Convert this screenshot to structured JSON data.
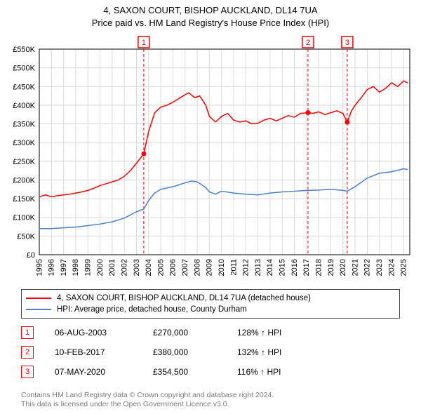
{
  "title_line1": "4, SAXON COURT, BISHOP AUCKLAND, DL14 7UA",
  "title_line2": "Price paid vs. HM Land Registry's House Price Index (HPI)",
  "chart": {
    "type": "line",
    "background_color": "#ffffff",
    "grid_color": "#d9d9d9",
    "axis_color": "#000000",
    "tick_font_size": 11,
    "x": {
      "min": 1995,
      "max": 2025.5,
      "ticks": [
        1995,
        1996,
        1997,
        1998,
        1999,
        2000,
        2001,
        2002,
        2003,
        2004,
        2005,
        2006,
        2007,
        2008,
        2009,
        2010,
        2011,
        2012,
        2013,
        2014,
        2015,
        2016,
        2017,
        2018,
        2019,
        2020,
        2021,
        2022,
        2023,
        2024,
        2025
      ],
      "tick_labels": [
        "1995",
        "1996",
        "1997",
        "1998",
        "1999",
        "2000",
        "2001",
        "2002",
        "2003",
        "2004",
        "2005",
        "2006",
        "2007",
        "2008",
        "2009",
        "2010",
        "2011",
        "2012",
        "2013",
        "2014",
        "2015",
        "2016",
        "2017",
        "2018",
        "2019",
        "2020",
        "2021",
        "2022",
        "2023",
        "2024",
        "2025"
      ],
      "label_rotation": -90
    },
    "y": {
      "min": 0,
      "max": 550000,
      "ticks": [
        0,
        50000,
        100000,
        150000,
        200000,
        250000,
        300000,
        350000,
        400000,
        450000,
        500000,
        550000
      ],
      "tick_labels": [
        "£0",
        "£50K",
        "£100K",
        "£150K",
        "£200K",
        "£250K",
        "£300K",
        "£350K",
        "£400K",
        "£450K",
        "£500K",
        "£550K"
      ]
    },
    "series": [
      {
        "name": "4, SAXON COURT, BISHOP AUCKLAND, DL14 7UA (detached house)",
        "color": "#ff0000",
        "line_width": 1.5,
        "points": [
          [
            1995.0,
            155000
          ],
          [
            1995.5,
            160000
          ],
          [
            1996.0,
            155000
          ],
          [
            1996.5,
            158000
          ],
          [
            1997.0,
            160000
          ],
          [
            1997.5,
            162000
          ],
          [
            1998.0,
            165000
          ],
          [
            1998.5,
            168000
          ],
          [
            1999.0,
            172000
          ],
          [
            1999.5,
            178000
          ],
          [
            2000.0,
            185000
          ],
          [
            2000.5,
            190000
          ],
          [
            2001.0,
            195000
          ],
          [
            2001.5,
            200000
          ],
          [
            2002.0,
            210000
          ],
          [
            2002.5,
            225000
          ],
          [
            2003.0,
            245000
          ],
          [
            2003.6,
            270000
          ],
          [
            2004.0,
            330000
          ],
          [
            2004.5,
            380000
          ],
          [
            2005.0,
            395000
          ],
          [
            2005.5,
            400000
          ],
          [
            2006.0,
            408000
          ],
          [
            2006.5,
            418000
          ],
          [
            2007.0,
            428000
          ],
          [
            2007.3,
            433000
          ],
          [
            2007.8,
            420000
          ],
          [
            2008.2,
            425000
          ],
          [
            2008.7,
            400000
          ],
          [
            2009.0,
            370000
          ],
          [
            2009.5,
            355000
          ],
          [
            2010.0,
            370000
          ],
          [
            2010.5,
            378000
          ],
          [
            2011.0,
            360000
          ],
          [
            2011.5,
            355000
          ],
          [
            2012.0,
            358000
          ],
          [
            2012.5,
            350000
          ],
          [
            2013.0,
            352000
          ],
          [
            2013.5,
            360000
          ],
          [
            2014.0,
            365000
          ],
          [
            2014.5,
            358000
          ],
          [
            2015.0,
            365000
          ],
          [
            2015.5,
            372000
          ],
          [
            2016.0,
            368000
          ],
          [
            2016.5,
            378000
          ],
          [
            2017.1,
            380000
          ],
          [
            2017.5,
            378000
          ],
          [
            2018.0,
            382000
          ],
          [
            2018.5,
            375000
          ],
          [
            2019.0,
            380000
          ],
          [
            2019.5,
            385000
          ],
          [
            2020.0,
            378000
          ],
          [
            2020.35,
            354500
          ],
          [
            2020.7,
            385000
          ],
          [
            2021.0,
            400000
          ],
          [
            2021.5,
            420000
          ],
          [
            2022.0,
            442000
          ],
          [
            2022.5,
            450000
          ],
          [
            2023.0,
            435000
          ],
          [
            2023.5,
            445000
          ],
          [
            2024.0,
            460000
          ],
          [
            2024.5,
            450000
          ],
          [
            2025.0,
            465000
          ],
          [
            2025.3,
            460000
          ]
        ]
      },
      {
        "name": "HPI: Average price, detached house, County Durham",
        "color": "#4a7fd1",
        "line_width": 1.5,
        "points": [
          [
            1995.0,
            70000
          ],
          [
            1996.0,
            70000
          ],
          [
            1997.0,
            72000
          ],
          [
            1998.0,
            74000
          ],
          [
            1999.0,
            78000
          ],
          [
            2000.0,
            82000
          ],
          [
            2001.0,
            88000
          ],
          [
            2002.0,
            98000
          ],
          [
            2003.0,
            115000
          ],
          [
            2003.6,
            122000
          ],
          [
            2004.0,
            145000
          ],
          [
            2004.5,
            165000
          ],
          [
            2005.0,
            175000
          ],
          [
            2006.0,
            182000
          ],
          [
            2007.0,
            192000
          ],
          [
            2007.5,
            197000
          ],
          [
            2008.0,
            195000
          ],
          [
            2008.7,
            180000
          ],
          [
            2009.0,
            168000
          ],
          [
            2009.5,
            162000
          ],
          [
            2010.0,
            170000
          ],
          [
            2011.0,
            165000
          ],
          [
            2012.0,
            162000
          ],
          [
            2013.0,
            160000
          ],
          [
            2014.0,
            165000
          ],
          [
            2015.0,
            168000
          ],
          [
            2016.0,
            170000
          ],
          [
            2017.1,
            172000
          ],
          [
            2018.0,
            173000
          ],
          [
            2019.0,
            175000
          ],
          [
            2020.0,
            172000
          ],
          [
            2020.35,
            170000
          ],
          [
            2021.0,
            182000
          ],
          [
            2022.0,
            205000
          ],
          [
            2023.0,
            218000
          ],
          [
            2024.0,
            222000
          ],
          [
            2025.0,
            230000
          ],
          [
            2025.3,
            228000
          ]
        ]
      }
    ],
    "sale_markers": [
      {
        "n": "1",
        "x": 2003.6,
        "y": 270000,
        "dashed_line_color": "#ff0000"
      },
      {
        "n": "2",
        "x": 2017.12,
        "y": 380000,
        "dashed_line_color": "#ff0000"
      },
      {
        "n": "3",
        "x": 2020.35,
        "y": 354500,
        "dashed_line_color": "#ff0000"
      }
    ],
    "marker_dot_color": "#ff0000",
    "marker_dot_radius": 3.5,
    "marker_badge_border": "#ff0000",
    "marker_badge_text_color": "#ff0000",
    "marker_badge_size": 16,
    "dashed_pattern": "4,3"
  },
  "legend": {
    "items": [
      {
        "color": "#ff0000",
        "label": "4, SAXON COURT, BISHOP AUCKLAND, DL14 7UA (detached house)"
      },
      {
        "color": "#4a7fd1",
        "label": "HPI: Average price, detached house, County Durham"
      }
    ]
  },
  "sales_table": [
    {
      "n": "1",
      "date": "06-AUG-2003",
      "price": "£270,000",
      "pct": "128% ↑ HPI"
    },
    {
      "n": "2",
      "date": "10-FEB-2017",
      "price": "£380,000",
      "pct": "132% ↑ HPI"
    },
    {
      "n": "3",
      "date": "07-MAY-2020",
      "price": "£354,500",
      "pct": "116% ↑ HPI"
    }
  ],
  "footer_line1": "Contains HM Land Registry data © Crown copyright and database right 2024.",
  "footer_line2": "This data is licensed under the Open Government Licence v3.0."
}
